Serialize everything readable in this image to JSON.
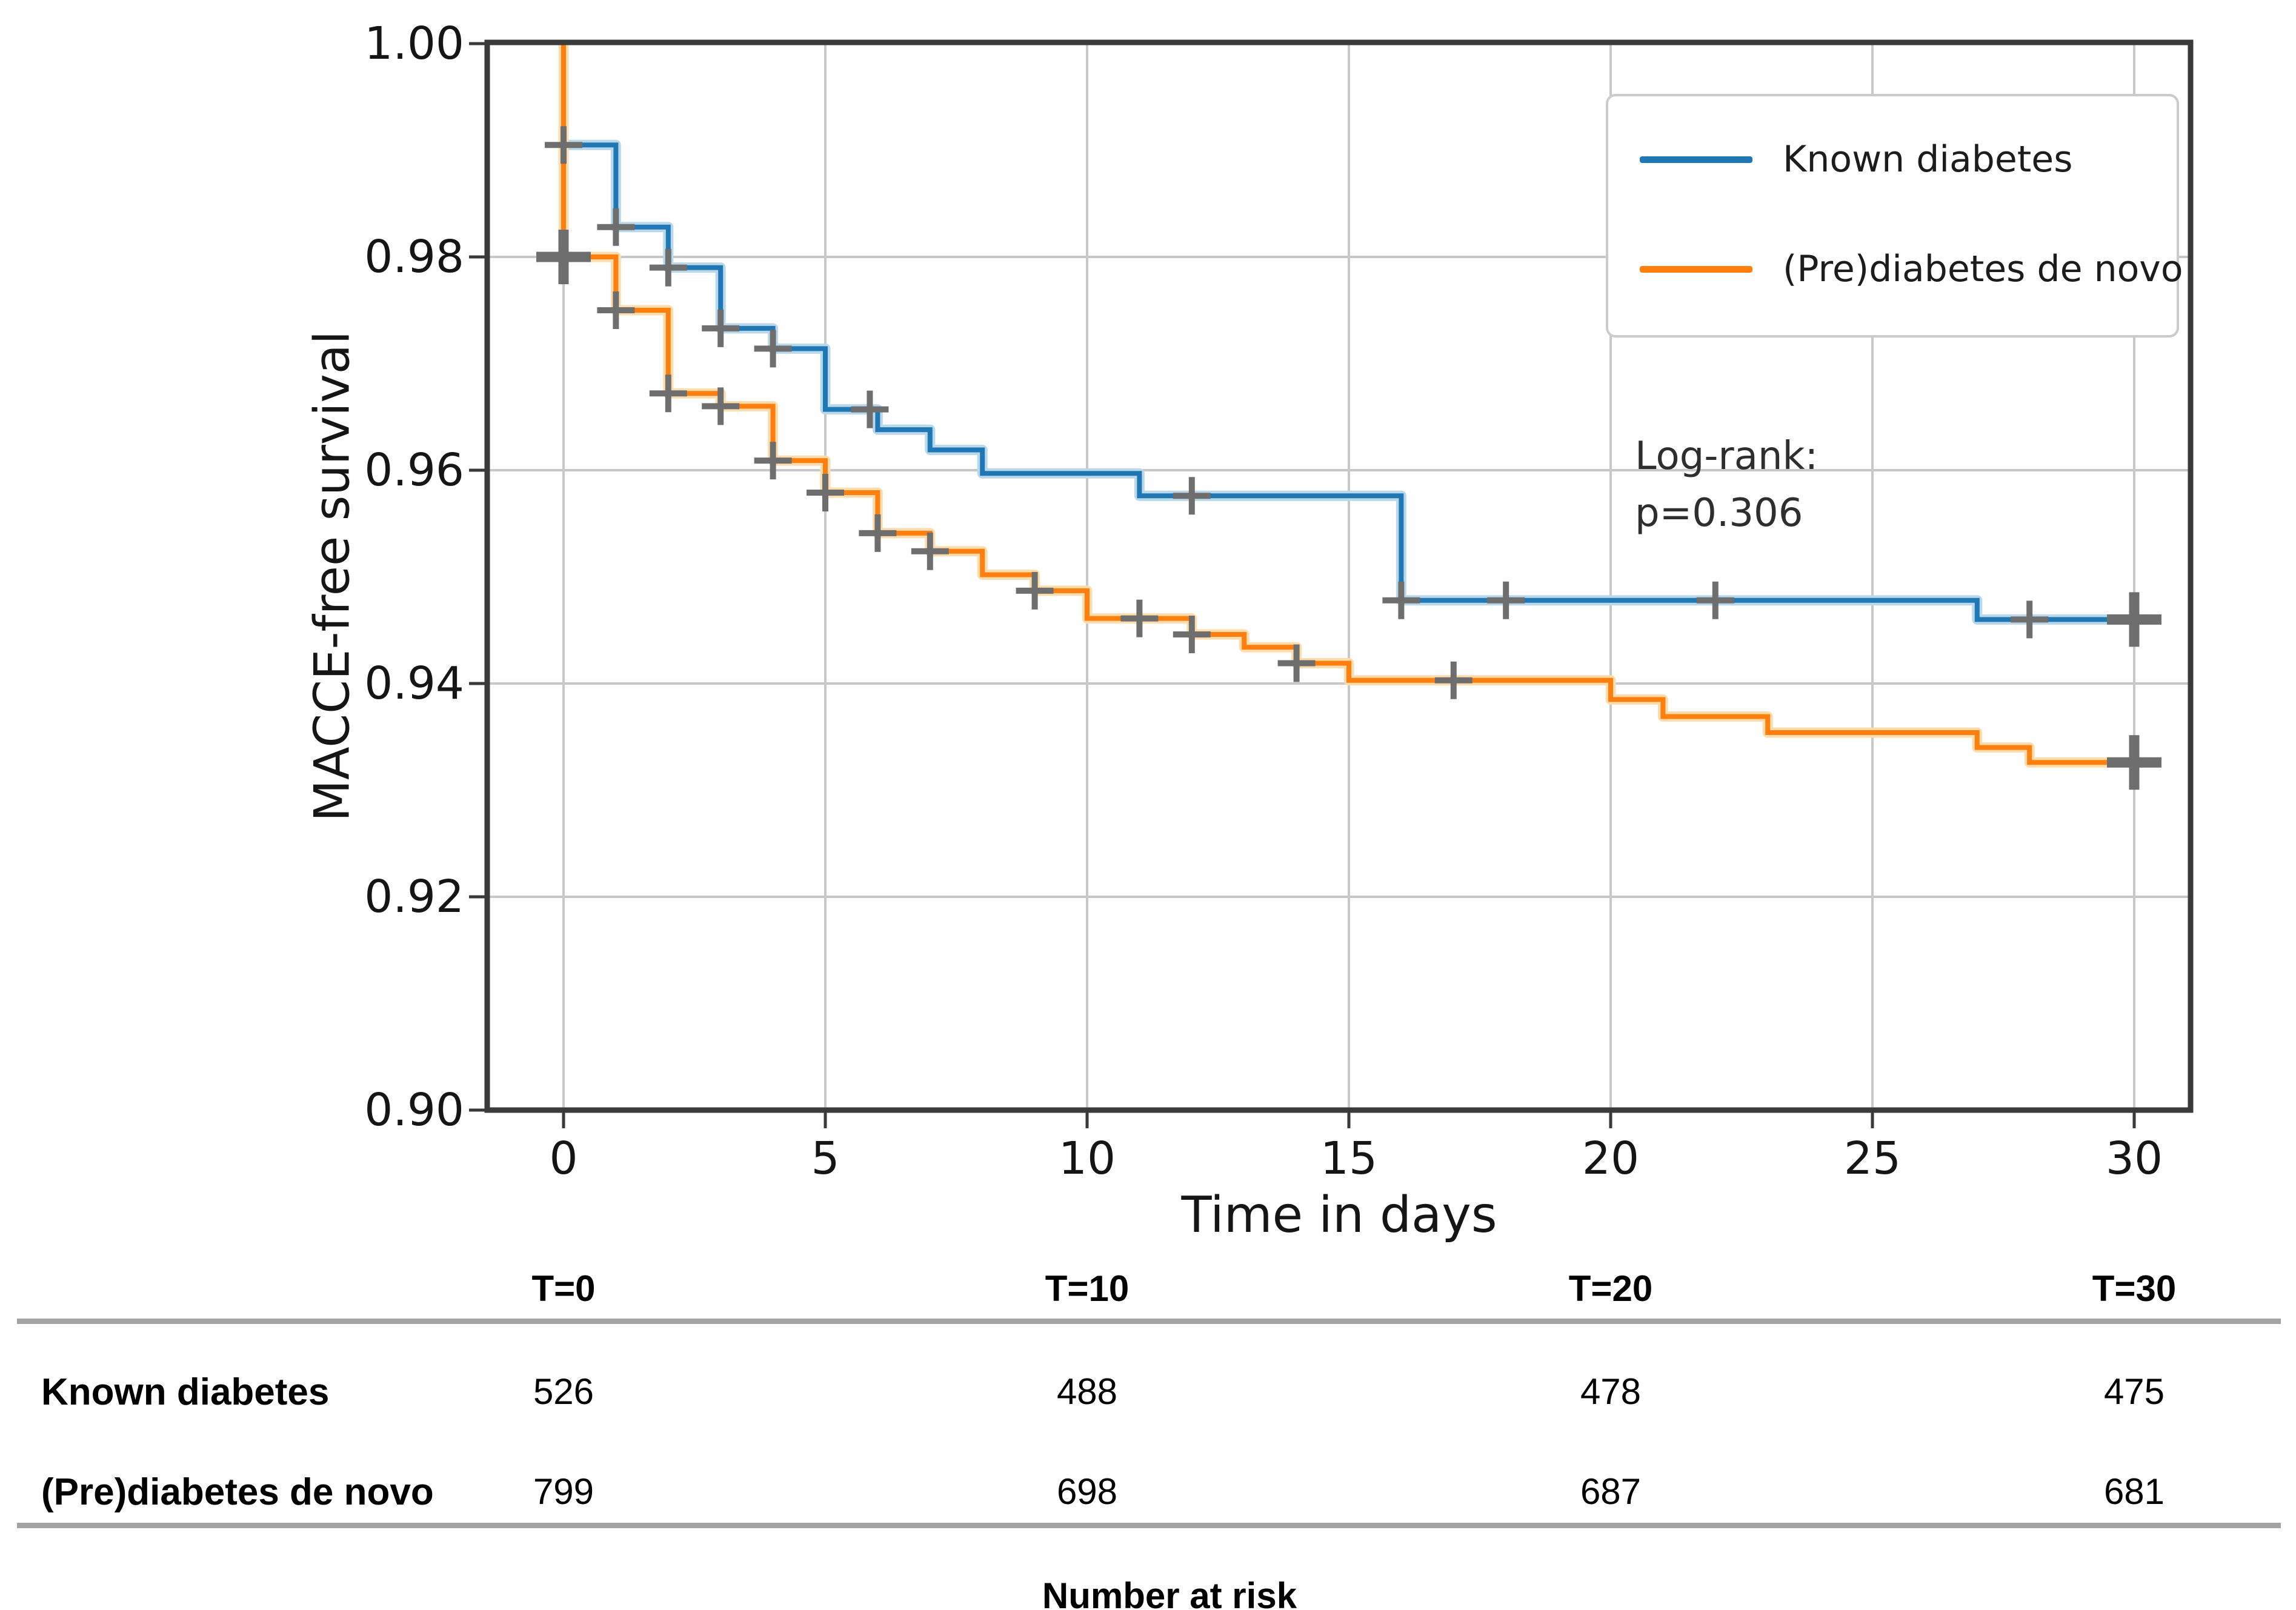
{
  "colors": {
    "series_blue": "#1f77b4",
    "series_blue_halo": "#bad8ec",
    "series_orange": "#ff7f0e",
    "series_orange_halo": "#ffdcab",
    "censor_gray": "#6e6e6e",
    "grid_gray": "#c9c9c9",
    "spine_dark": "#3a3a3a",
    "table_rule_gray": "#a4a4a4"
  },
  "chart_data": {
    "type": "line",
    "subtype": "kaplan-meier-step",
    "title": "",
    "xlabel": "Time in days",
    "ylabel": "MACCE-free survival",
    "xlim": [
      -1.46,
      31.1
    ],
    "ylim": [
      0.9,
      1.0
    ],
    "grid": true,
    "legend_position": "upper right",
    "x_ticks": [
      0,
      5,
      10,
      15,
      20,
      25,
      30
    ],
    "x_tick_labels": [
      "0",
      "5",
      "10",
      "15",
      "20",
      "25",
      "30"
    ],
    "y_tick_values": [
      1.0,
      0.98,
      0.96,
      0.94,
      0.92,
      0.9
    ],
    "y_tick_labels": [
      "1.00",
      "0.98",
      "0.96",
      "0.94",
      "0.92",
      "0.90"
    ],
    "annotation": {
      "line1": "Log-rank:",
      "line2": "p=0.306"
    },
    "series": [
      {
        "name": "Known diabetes",
        "color": "#1f77b4",
        "halo": "#bad8ec",
        "start": [
          0,
          1.0
        ],
        "end_t": 30.3,
        "steps": [
          [
            0,
            0.9905
          ],
          [
            1,
            0.9828
          ],
          [
            2,
            0.979
          ],
          [
            3,
            0.9733
          ],
          [
            4,
            0.9714
          ],
          [
            5,
            0.9657
          ],
          [
            6,
            0.9638
          ],
          [
            7,
            0.9619
          ],
          [
            8,
            0.9597
          ],
          [
            11,
            0.9576
          ],
          [
            16,
            0.9478
          ],
          [
            27,
            0.946
          ]
        ],
        "censors": [
          [
            0,
            0.9905
          ],
          [
            1,
            0.9828
          ],
          [
            2,
            0.979
          ],
          [
            3,
            0.9733
          ],
          [
            4,
            0.9714
          ],
          [
            5.85,
            0.9657
          ],
          [
            12,
            0.9576
          ],
          [
            16,
            0.9478
          ],
          [
            18,
            0.9478
          ],
          [
            22,
            0.9478
          ],
          [
            28,
            0.946
          ]
        ],
        "censors_big": [
          [
            30,
            0.946
          ]
        ]
      },
      {
        "name": "(Pre)diabetes de novo",
        "color": "#ff7f0e",
        "halo": "#ffdcab",
        "start": [
          0,
          1.0
        ],
        "end_t": 30.3,
        "steps": [
          [
            0,
            0.98
          ],
          [
            1,
            0.975
          ],
          [
            2,
            0.9672
          ],
          [
            3,
            0.966
          ],
          [
            4,
            0.9609
          ],
          [
            5,
            0.9579
          ],
          [
            6,
            0.9541
          ],
          [
            7,
            0.9524
          ],
          [
            8,
            0.9502
          ],
          [
            9,
            0.9487
          ],
          [
            10,
            0.9461
          ],
          [
            12,
            0.9446
          ],
          [
            13,
            0.9434
          ],
          [
            14,
            0.9419
          ],
          [
            15,
            0.9403
          ],
          [
            20,
            0.9385
          ],
          [
            21,
            0.9369
          ],
          [
            23,
            0.9354
          ],
          [
            27,
            0.934
          ],
          [
            28,
            0.9326
          ]
        ],
        "censors": [
          [
            1,
            0.975
          ],
          [
            2,
            0.9672
          ],
          [
            3,
            0.966
          ],
          [
            4,
            0.9609
          ],
          [
            5,
            0.9579
          ],
          [
            6,
            0.9541
          ],
          [
            7,
            0.9524
          ],
          [
            9,
            0.9487
          ],
          [
            11,
            0.9461
          ],
          [
            12,
            0.9446
          ],
          [
            14,
            0.9419
          ],
          [
            17,
            0.9403
          ]
        ],
        "censors_big": [
          [
            0,
            0.98
          ],
          [
            30,
            0.9326
          ]
        ]
      }
    ]
  },
  "risk_table": {
    "caption": "Number at risk",
    "time_headers": [
      "T=0",
      "T=10",
      "T=20",
      "T=30"
    ],
    "time_values": [
      0,
      10,
      20,
      30
    ],
    "rows": [
      {
        "label": "Known diabetes",
        "values": [
          "526",
          "488",
          "478",
          "475"
        ]
      },
      {
        "label": "(Pre)diabetes de novo",
        "values": [
          "799",
          "698",
          "687",
          "681"
        ]
      }
    ]
  }
}
